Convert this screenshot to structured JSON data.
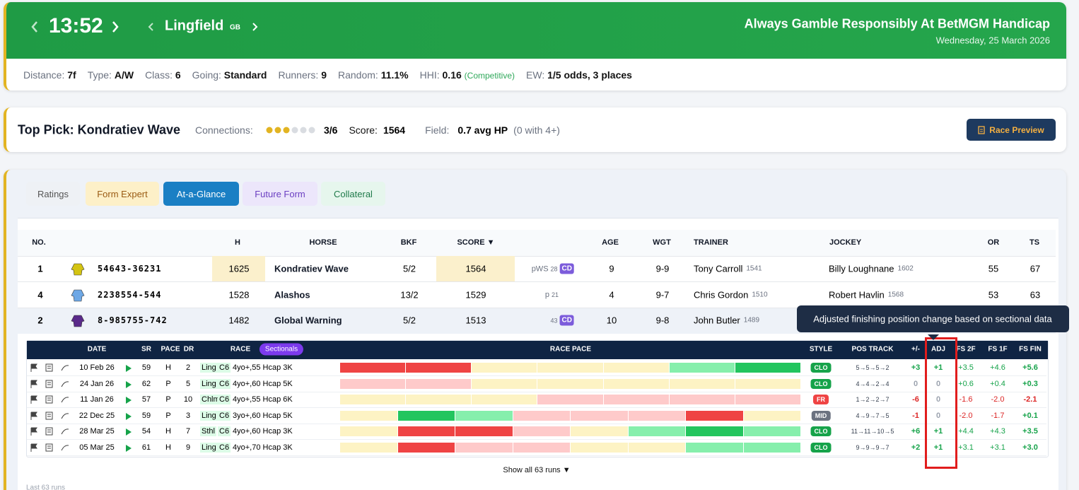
{
  "header": {
    "time": "13:52",
    "course": "Lingfield",
    "country": "GB",
    "race_name": "Always Gamble Responsibly At BetMGM Handicap",
    "date": "Wednesday, 25 March 2026"
  },
  "info": [
    {
      "label": "Distance:",
      "value": "7f"
    },
    {
      "label": "Type:",
      "value": "A/W"
    },
    {
      "label": "Class:",
      "value": "6"
    },
    {
      "label": "Going:",
      "value": "Standard"
    },
    {
      "label": "Runners:",
      "value": "9"
    },
    {
      "label": "Random:",
      "value": "11.1%"
    },
    {
      "label": "HHI:",
      "value": "0.16",
      "note": "(Competitive)"
    },
    {
      "label": "EW:",
      "value": "1/5 odds, 3 places"
    }
  ],
  "top_pick": {
    "title": "Top Pick: Kondratiev Wave",
    "connections_label": "Connections:",
    "connections": "3/6",
    "score_label": "Score:",
    "score": "1564",
    "field_label": "Field:",
    "field": "0.7 avg HP",
    "field_note": "(0 with 4+)",
    "button": "Race Preview"
  },
  "tabs": [
    "Ratings",
    "Form Expert",
    "At-a-Glance",
    "Future Form",
    "Collateral"
  ],
  "runners": {
    "headers": [
      "NO.",
      "H",
      "HORSE",
      "BKF",
      "SCORE ▼",
      "AGE",
      "WGT",
      "TRAINER",
      "JOCKEY",
      "OR",
      "TS"
    ],
    "rows": [
      {
        "no": 1,
        "form": "54643-36231",
        "h": 1625,
        "horse": "Kondratiev Wave",
        "bkf": "5/2",
        "score": 1564,
        "tag": "pWS",
        "tag_num": 28,
        "badge": "CD",
        "age": 9,
        "wgt": "9-9",
        "trainer": "Tony Carroll",
        "trainer_rating": 1541,
        "jockey": "Billy Loughnane",
        "jockey_rating": 1602,
        "or": 55,
        "ts": 67
      },
      {
        "no": 4,
        "form": "2238554-544",
        "h": 1528,
        "horse": "Alashos",
        "bkf": "13/2",
        "score": 1529,
        "tag": "p",
        "tag_num": 21,
        "age": 4,
        "wgt": "9-7",
        "trainer": "Chris Gordon",
        "trainer_rating": 1510,
        "jockey": "Robert Havlin",
        "jockey_rating": 1568,
        "or": 53,
        "ts": 63
      },
      {
        "no": 2,
        "form": "8-985755-742",
        "h": 1482,
        "horse": "Global Warning",
        "bkf": "5/2",
        "score": 1513,
        "tag_num": 43,
        "badge": "CD",
        "age": 10,
        "wgt": "9-8",
        "trainer": "John Butler",
        "trainer_rating": 1489
      }
    ]
  },
  "form": {
    "headers": [
      "DATE",
      "SR",
      "PACE",
      "DR",
      "RACE",
      "RACE PACE",
      "STYLE",
      "POS TRACK",
      "+/-",
      "ADJ",
      "FS 2F",
      "FS 1F",
      "FS FIN"
    ],
    "sectionals": "Sectionals",
    "rows": [
      {
        "date": "10 Feb 26",
        "sr": 59,
        "pace": "H",
        "dr": 2,
        "course": "Ling",
        "class": "C6",
        "race": "4yo+,55 Hcap 3K",
        "pace_bar": [
          "#ef4444",
          "#ef4444",
          "#fdf3c4",
          "#fdf3c4",
          "#fdf3c4",
          "#86efac",
          "#22c55e"
        ],
        "style": "CLO",
        "pos": "5→5→5→2",
        "diff": "+3",
        "adj": "+1",
        "fs2": "+3.5",
        "fs1": "+4.6",
        "fsfin": "+5.6"
      },
      {
        "date": "24 Jan 26",
        "sr": 62,
        "pace": "P",
        "dr": 5,
        "course": "Ling",
        "class": "C6",
        "race": "4yo+,60 Hcap 5K",
        "pace_bar": [
          "#fecaca",
          "#fecaca",
          "#fdf3c4",
          "#fdf3c4",
          "#fdf3c4",
          "#fdf3c4",
          "#fdf3c4"
        ],
        "style": "CLO",
        "pos": "4→4→2→4",
        "diff": "0",
        "adj": "0",
        "fs2": "+0.6",
        "fs1": "+0.4",
        "fsfin": "+0.3"
      },
      {
        "date": "11 Jan 26",
        "sr": 57,
        "pace": "P",
        "dr": 10,
        "course": "ChlmC",
        "class": "C6",
        "race": "4yo+,55 Hcap 6K",
        "pace_bar": [
          "#fdf3c4",
          "#fdf3c4",
          "#fdf3c4",
          "#fecaca",
          "#fecaca",
          "#fecaca",
          "#fecaca"
        ],
        "style": "FR",
        "pos": "1→2→2→7",
        "diff": "-6",
        "adj": "0",
        "fs2": "-1.6",
        "fs1": "-2.0",
        "fsfin": "-2.1"
      },
      {
        "date": "22 Dec 25",
        "sr": 59,
        "pace": "P",
        "dr": 3,
        "course": "Ling",
        "class": "C6",
        "race": "3yo+,60 Hcap 5K",
        "pace_bar": [
          "#fdf3c4",
          "#22c55e",
          "#86efac",
          "#fecaca",
          "#fecaca",
          "#fecaca",
          "#ef4444",
          "#fdf3c4"
        ],
        "style": "MID",
        "pos": "4→9→7→5",
        "diff": "-1",
        "adj": "0",
        "fs2": "-2.0",
        "fs1": "-1.7",
        "fsfin": "+0.1"
      },
      {
        "date": "28 Mar 25",
        "sr": 54,
        "pace": "H",
        "dr": 7,
        "course": "Sthl",
        "class": "C6",
        "race": "4yo+,60 Hcap 3K",
        "pace_bar": [
          "#fdf3c4",
          "#ef4444",
          "#ef4444",
          "#fecaca",
          "#fdf3c4",
          "#86efac",
          "#22c55e",
          "#86efac"
        ],
        "style": "CLO",
        "pos": "11→11→10→5",
        "diff": "+6",
        "adj": "+1",
        "fs2": "+4.4",
        "fs1": "+4.3",
        "fsfin": "+3.5"
      },
      {
        "date": "05 Mar 25",
        "sr": 61,
        "pace": "H",
        "dr": 9,
        "course": "Ling",
        "class": "C6",
        "race": "4yo+,70 Hcap 3K",
        "pace_bar": [
          "#fdf3c4",
          "#ef4444",
          "#fecaca",
          "#fecaca",
          "#fdf3c4",
          "#fdf3c4",
          "#86efac",
          "#86efac"
        ],
        "style": "CLO",
        "pos": "9→9→9→7",
        "diff": "+2",
        "adj": "+1",
        "fs2": "+3.1",
        "fs1": "+3.1",
        "fsfin": "+3.0"
      }
    ],
    "show_all": "Show all 63 runs ▼",
    "footer": "Last 63 runs"
  },
  "tooltip": "Adjusted finishing position change based on sectional data"
}
